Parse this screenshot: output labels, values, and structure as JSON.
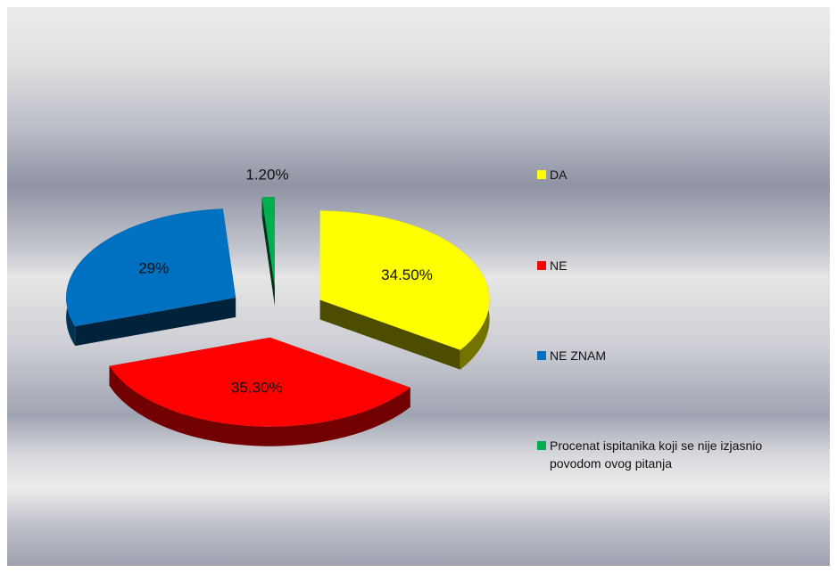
{
  "chart_data": {
    "type": "pie",
    "categories": [
      "DA",
      "NE",
      "NE ZNAM",
      "Procenat ispitanika koji se nije izjasnio povodom ovog pitanja"
    ],
    "values": [
      34.5,
      35.3,
      29,
      1.2
    ],
    "value_labels": [
      "34.50%",
      "35.30%",
      "29%",
      "1.20%"
    ],
    "colors": [
      "#ffff00",
      "#ff0000",
      "#0070c0",
      "#00b050"
    ],
    "legend": "right"
  }
}
